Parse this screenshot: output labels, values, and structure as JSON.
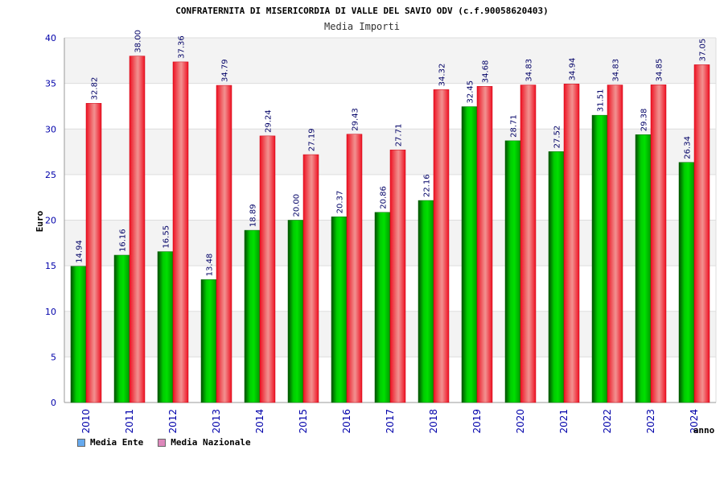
{
  "chart_data": {
    "type": "bar",
    "title": "CONFRATERNITA DI MISERICORDIA DI VALLE DEL SAVIO ODV (c.f.90058620403)",
    "subtitle": "Media Importi",
    "ylabel": "Euro",
    "xlabel": "anno",
    "ylim": [
      0,
      40
    ],
    "yticks": [
      "0",
      "5",
      "10",
      "15",
      "20",
      "25",
      "30",
      "35",
      "40"
    ],
    "categories": [
      "2010",
      "2011",
      "2012",
      "2013",
      "2014",
      "2015",
      "2016",
      "2017",
      "2018",
      "2019",
      "2020",
      "2021",
      "2022",
      "2023",
      "2024"
    ],
    "series": [
      {
        "name": "Media Ente",
        "color": "#00aa00",
        "legend_color": "#66aaee",
        "values": [
          14.94,
          16.16,
          16.55,
          13.48,
          18.89,
          20.0,
          20.37,
          20.86,
          22.16,
          32.45,
          28.71,
          27.52,
          31.51,
          29.38,
          26.34
        ],
        "labels": [
          "14.94",
          "16.16",
          "16.55",
          "13.48",
          "18.89",
          "20.00",
          "20.37",
          "20.86",
          "22.16",
          "32.45",
          "28.71",
          "27.52",
          "31.51",
          "29.38",
          "26.34"
        ]
      },
      {
        "name": "Media Nazionale",
        "color": "#ee1122",
        "legend_color": "#dd88bb",
        "values": [
          32.82,
          38.0,
          37.36,
          34.79,
          29.24,
          27.19,
          29.43,
          27.71,
          34.32,
          34.68,
          34.83,
          34.94,
          34.83,
          34.85,
          37.05
        ],
        "labels": [
          "32.82",
          "38.00",
          "37.36",
          "34.79",
          "29.24",
          "27.19",
          "29.43",
          "27.71",
          "34.32",
          "34.68",
          "34.83",
          "34.94",
          "34.83",
          "34.85",
          "37.05"
        ]
      }
    ],
    "grid": true,
    "legend_position": "bottom-left"
  }
}
